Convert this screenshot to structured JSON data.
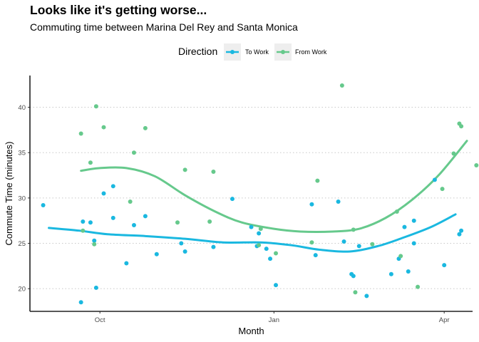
{
  "header": {
    "title": "Looks like it's getting worse...",
    "subtitle": "Commuting time between Marina Del Rey and Santa Monica"
  },
  "chart_data": {
    "type": "scatter",
    "title": "Looks like it's getting worse...",
    "subtitle": "Commuting time between Marina Del Rey and Santa Monica",
    "xlabel": "Month",
    "ylabel": "Commute Time (minutes)",
    "legend": {
      "title": "Direction",
      "position": "top"
    },
    "x_ticks": [
      "Oct",
      "Jan",
      "Apr"
    ],
    "y_ticks": [
      20,
      25,
      30,
      35,
      40
    ],
    "xlim": [
      "2017-08-25",
      "2018-04-16"
    ],
    "ylim": [
      17.5,
      43.5
    ],
    "grid": "horizontal dotted",
    "trend": "loess smooth per series",
    "series": [
      {
        "name": "To Work",
        "color": "#1ab8e0",
        "points": [
          [
            "2017-09-01",
            29.2
          ],
          [
            "2017-09-21",
            18.5
          ],
          [
            "2017-09-22",
            27.4
          ],
          [
            "2017-09-26",
            27.3
          ],
          [
            "2017-09-28",
            25.3
          ],
          [
            "2017-09-29",
            20.1
          ],
          [
            "2017-10-03",
            30.5
          ],
          [
            "2017-10-08",
            31.3
          ],
          [
            "2017-10-08",
            27.8
          ],
          [
            "2017-10-15",
            22.8
          ],
          [
            "2017-10-19",
            27.0
          ],
          [
            "2017-10-25",
            28.0
          ],
          [
            "2017-10-31",
            23.8
          ],
          [
            "2017-11-13",
            25.0
          ],
          [
            "2017-11-15",
            24.1
          ],
          [
            "2017-11-30",
            24.6
          ],
          [
            "2017-12-10",
            29.9
          ],
          [
            "2017-12-20",
            26.8
          ],
          [
            "2017-12-23",
            24.7
          ],
          [
            "2017-12-24",
            26.1
          ],
          [
            "2017-12-28",
            24.4
          ],
          [
            "2017-12-30",
            23.3
          ],
          [
            "2018-01-02",
            20.4
          ],
          [
            "2018-01-21",
            29.3
          ],
          [
            "2018-01-23",
            23.7
          ],
          [
            "2018-02-04",
            29.6
          ],
          [
            "2018-02-07",
            25.2
          ],
          [
            "2018-02-11",
            21.6
          ],
          [
            "2018-02-12",
            21.4
          ],
          [
            "2018-02-15",
            24.7
          ],
          [
            "2018-02-19",
            19.2
          ],
          [
            "2018-03-04",
            21.6
          ],
          [
            "2018-03-08",
            23.3
          ],
          [
            "2018-03-11",
            26.8
          ],
          [
            "2018-03-13",
            21.9
          ],
          [
            "2018-03-16",
            27.5
          ],
          [
            "2018-03-16",
            25.0
          ],
          [
            "2018-03-27",
            32.0
          ],
          [
            "2018-04-01",
            22.6
          ],
          [
            "2018-04-09",
            26.0
          ],
          [
            "2018-04-10",
            26.4
          ]
        ]
      },
      {
        "name": "From Work",
        "color": "#66c98c",
        "points": [
          [
            "2017-09-21",
            37.1
          ],
          [
            "2017-09-22",
            26.4
          ],
          [
            "2017-09-26",
            33.9
          ],
          [
            "2017-09-28",
            24.9
          ],
          [
            "2017-09-29",
            40.1
          ],
          [
            "2017-10-03",
            37.8
          ],
          [
            "2017-10-17",
            29.6
          ],
          [
            "2017-10-19",
            35.0
          ],
          [
            "2017-10-25",
            37.7
          ],
          [
            "2017-11-11",
            27.3
          ],
          [
            "2017-11-15",
            33.1
          ],
          [
            "2017-11-28",
            27.4
          ],
          [
            "2017-11-30",
            32.9
          ],
          [
            "2017-12-24",
            24.8
          ],
          [
            "2017-12-25",
            26.6
          ],
          [
            "2018-01-02",
            23.9
          ],
          [
            "2018-01-21",
            25.1
          ],
          [
            "2018-01-24",
            31.9
          ],
          [
            "2018-02-06",
            42.4
          ],
          [
            "2018-02-12",
            26.5
          ],
          [
            "2018-02-13",
            19.6
          ],
          [
            "2018-02-22",
            24.9
          ],
          [
            "2018-03-07",
            28.5
          ],
          [
            "2018-03-09",
            23.6
          ],
          [
            "2018-03-18",
            20.2
          ],
          [
            "2018-03-31",
            31.0
          ],
          [
            "2018-04-06",
            34.9
          ],
          [
            "2018-04-09",
            38.2
          ],
          [
            "2018-04-10",
            37.9
          ],
          [
            "2018-04-18",
            33.6
          ]
        ],
        "note": "smooth follows points"
      }
    ],
    "smooth": [
      {
        "name": "To Work",
        "points": [
          [
            "2017-09-04",
            26.7
          ],
          [
            "2017-09-20",
            26.4
          ],
          [
            "2017-10-05",
            26.0
          ],
          [
            "2017-10-25",
            25.8
          ],
          [
            "2017-11-15",
            25.5
          ],
          [
            "2017-12-05",
            25.1
          ],
          [
            "2017-12-25",
            25.1
          ],
          [
            "2018-01-10",
            24.8
          ],
          [
            "2018-01-25",
            24.3
          ],
          [
            "2018-02-10",
            24.1
          ],
          [
            "2018-02-25",
            24.7
          ],
          [
            "2018-03-10",
            25.6
          ],
          [
            "2018-03-25",
            26.8
          ],
          [
            "2018-04-07",
            28.2
          ]
        ]
      },
      {
        "name": "From Work",
        "points": [
          [
            "2017-09-21",
            33.0
          ],
          [
            "2017-10-01",
            33.3
          ],
          [
            "2017-10-15",
            33.3
          ],
          [
            "2017-10-30",
            32.4
          ],
          [
            "2017-11-15",
            30.3
          ],
          [
            "2017-12-01",
            28.5
          ],
          [
            "2017-12-15",
            27.3
          ],
          [
            "2018-01-01",
            26.6
          ],
          [
            "2018-01-15",
            26.3
          ],
          [
            "2018-02-01",
            26.3
          ],
          [
            "2018-02-15",
            26.6
          ],
          [
            "2018-03-01",
            27.8
          ],
          [
            "2018-03-15",
            29.8
          ],
          [
            "2018-03-29",
            32.5
          ],
          [
            "2018-04-13",
            36.3
          ]
        ]
      }
    ]
  }
}
